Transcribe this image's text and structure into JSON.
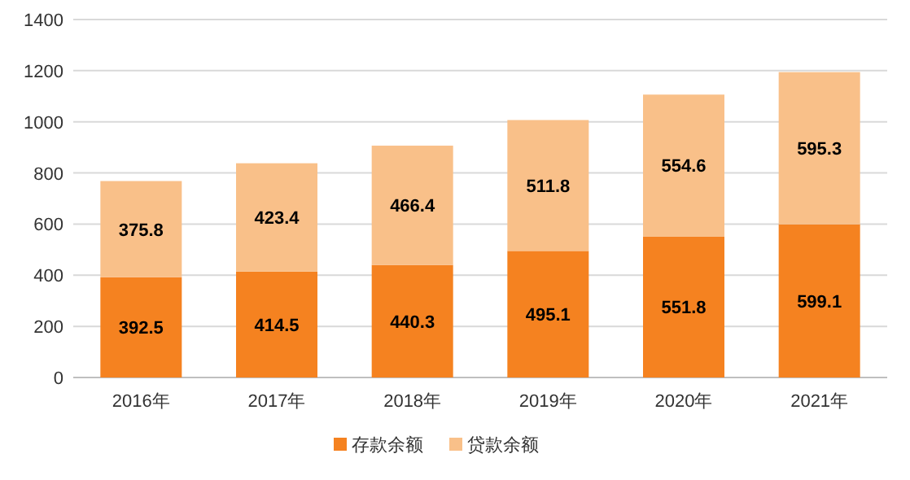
{
  "chart_data": {
    "type": "bar",
    "stacked": true,
    "categories": [
      "2016年",
      "2017年",
      "2018年",
      "2019年",
      "2020年",
      "2021年"
    ],
    "series": [
      {
        "name": "存款余额",
        "color": "#f58220",
        "values": [
          392.5,
          414.5,
          440.3,
          495.1,
          551.8,
          599.1
        ]
      },
      {
        "name": "贷款余额",
        "color": "#f9c089",
        "values": [
          375.8,
          423.4,
          466.4,
          511.8,
          554.6,
          595.3
        ]
      }
    ],
    "ylim": [
      0,
      1400
    ],
    "yticks": [
      0,
      200,
      400,
      600,
      800,
      1000,
      1200,
      1400
    ],
    "grid": "y",
    "legend": "bottom",
    "data_labels": true
  }
}
